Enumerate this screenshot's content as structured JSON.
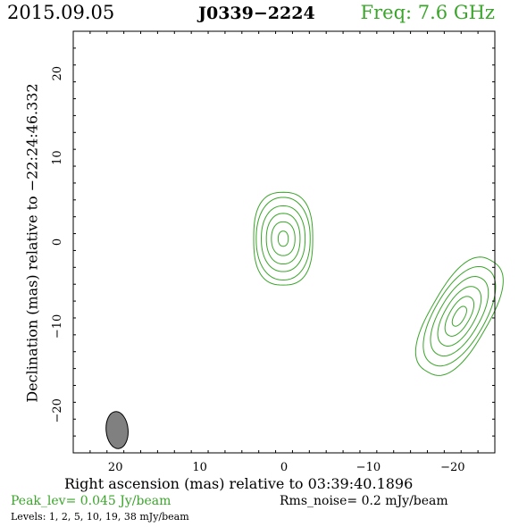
{
  "header": {
    "date": "2015.09.05",
    "source": "J0339−2224",
    "freq": "Freq: 7.6 GHz"
  },
  "footer": {
    "peak": "Peak_lev=  0.045 Jy/beam",
    "rms": "Rms_noise=  0.2 mJy/beam",
    "levels": "Levels:   1,   2,   5,  10,  19,  38 mJy/beam"
  },
  "colors": {
    "contour": "#3aa52a",
    "beam": "#808080",
    "frame": "#000000"
  },
  "chart_data": {
    "type": "contour",
    "title": "J0339−2224",
    "xlabel": "Right ascension (mas) relative to 03:39:40.1896",
    "ylabel": "Declination (mas) relative to −22:24:46.332",
    "xlim": [
      25,
      -25
    ],
    "ylim": [
      -25,
      25
    ],
    "xticks": [
      20,
      10,
      0,
      -10,
      -20
    ],
    "yticks": [
      -20,
      -10,
      0,
      10,
      20
    ],
    "xtick_labels": [
      "20",
      "10",
      "0",
      "−10",
      "−20"
    ],
    "ytick_labels": [
      "−20",
      "−10",
      "0",
      "10",
      "20"
    ],
    "contour_levels_mJy": [
      1,
      2,
      5,
      10,
      19,
      38
    ],
    "components": [
      {
        "center": [
          0.1,
          0.4
        ],
        "angle_deg": 0,
        "contours": [
          {
            "a": 3.5,
            "b": 5.5
          },
          {
            "a": 3.2,
            "b": 4.9
          },
          {
            "a": 2.6,
            "b": 3.9
          },
          {
            "a": 2.0,
            "b": 3.0
          },
          {
            "a": 1.4,
            "b": 2.0
          },
          {
            "a": 0.6,
            "b": 0.9
          }
        ]
      },
      {
        "center": [
          -20.8,
          -8.8
        ],
        "angle_deg": 30,
        "contours": [
          {
            "a": 3.4,
            "b": 7.6
          },
          {
            "a": 3.0,
            "b": 6.5
          },
          {
            "a": 2.4,
            "b": 5.2
          },
          {
            "a": 1.8,
            "b": 3.9
          },
          {
            "a": 1.2,
            "b": 2.6
          },
          {
            "a": 0.6,
            "b": 1.3
          }
        ]
      }
    ],
    "beam": {
      "center": [
        19.8,
        -22.3
      ],
      "a": 1.3,
      "b": 2.2,
      "angle_deg": -5
    }
  }
}
